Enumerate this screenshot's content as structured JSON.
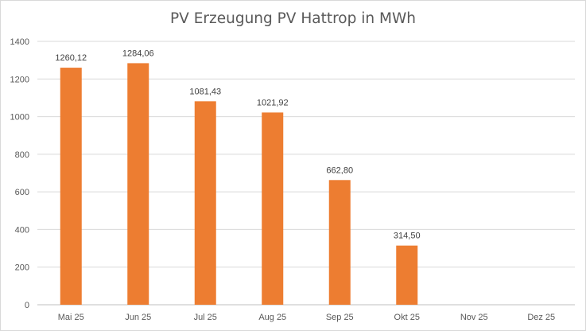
{
  "chart_data": {
    "type": "bar",
    "title": "PV Erzeugung PV Hattrop in MWh",
    "xlabel": "",
    "ylabel": "",
    "categories": [
      "Mai 25",
      "Jun 25",
      "Jul 25",
      "Aug 25",
      "Sep 25",
      "Okt 25",
      "Nov 25",
      "Dez 25"
    ],
    "values": [
      1260.12,
      1284.06,
      1081.43,
      1021.92,
      662.8,
      314.5,
      null,
      null
    ],
    "data_labels": [
      "1260,12",
      "1284,06",
      "1081,43",
      "1021,92",
      "662,80",
      "314,50",
      "",
      ""
    ],
    "ylim": [
      0,
      1400
    ],
    "yticks": [
      0,
      200,
      400,
      600,
      800,
      1000,
      1200,
      1400
    ],
    "grid": true,
    "legend": "none",
    "bar_color": "#ED7D31",
    "grid_color": "#d9d9d9",
    "axis_color": "#bfbfbf"
  }
}
